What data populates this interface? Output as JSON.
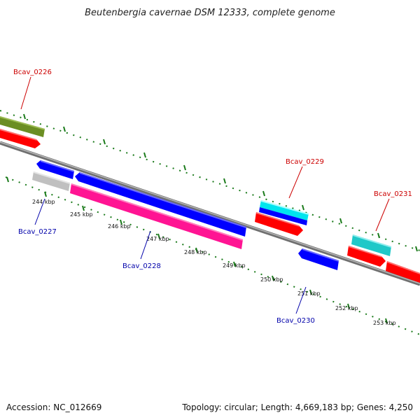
{
  "title": "Beutenbergia cavernae DSM 12333, complete genome",
  "footer": {
    "accession": "Accession: NC_012669",
    "summary": "Topology: circular; Length: 4,669,183 bp; Genes: 4,250"
  },
  "colors": {
    "backbone": "#808080",
    "tick": "#1a7a1a",
    "forward_label": "#cc0000",
    "reverse_label": "#0000aa"
  },
  "ticks": [
    "244 kbp",
    "245 kbp",
    "246 kbp",
    "247 kbp",
    "248 kbp",
    "249 kbp",
    "250 kbp",
    "251 kbp",
    "252 kbp",
    "253 kbp"
  ],
  "genes": [
    {
      "label": "Bcav_0226",
      "strand": "forward"
    },
    {
      "label": "Bcav_0227",
      "strand": "reverse"
    },
    {
      "label": "Bcav_0228",
      "strand": "reverse"
    },
    {
      "label": "Bcav_0229",
      "strand": "forward"
    },
    {
      "label": "Bcav_0230",
      "strand": "reverse"
    },
    {
      "label": "Bcav_0231",
      "strand": "forward"
    }
  ],
  "feature_colors": {
    "olive": "#6b8e23",
    "red": "#ff0000",
    "blue": "#0000ff",
    "gray": "#c0c0c0",
    "pink": "#ff1493",
    "cyan": "#00e5ee",
    "teal": "#20c8c8"
  }
}
